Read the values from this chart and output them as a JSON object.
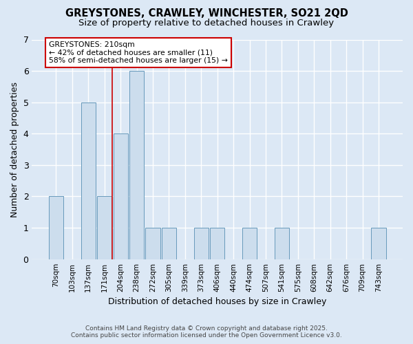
{
  "title1": "GREYSTONES, CRAWLEY, WINCHESTER, SO21 2QD",
  "title2": "Size of property relative to detached houses in Crawley",
  "xlabel": "Distribution of detached houses by size in Crawley",
  "ylabel": "Number of detached properties",
  "categories": [
    "70sqm",
    "103sqm",
    "137sqm",
    "171sqm",
    "204sqm",
    "238sqm",
    "272sqm",
    "305sqm",
    "339sqm",
    "373sqm",
    "406sqm",
    "440sqm",
    "474sqm",
    "507sqm",
    "541sqm",
    "575sqm",
    "608sqm",
    "642sqm",
    "676sqm",
    "709sqm",
    "743sqm"
  ],
  "values": [
    2,
    0,
    5,
    2,
    4,
    6,
    1,
    1,
    0,
    1,
    1,
    0,
    1,
    0,
    1,
    0,
    0,
    0,
    0,
    0,
    1
  ],
  "bar_color": "#ccdded",
  "bar_edge_color": "#6699bb",
  "red_line_x": 3.5,
  "annotation_title": "GREYSTONES: 210sqm",
  "annotation_line1": "← 42% of detached houses are smaller (11)",
  "annotation_line2": "58% of semi-detached houses are larger (15) →",
  "ylim": [
    0,
    7
  ],
  "yticks": [
    0,
    1,
    2,
    3,
    4,
    5,
    6,
    7
  ],
  "bg_color": "#dce8f5",
  "plot_bg_color": "#dce8f5",
  "footer": "Contains HM Land Registry data © Crown copyright and database right 2025.\nContains public sector information licensed under the Open Government Licence v3.0.",
  "title_fontsize": 10.5,
  "subtitle_fontsize": 9.5,
  "annotation_box_color": "#ffffff",
  "annotation_box_edge": "#cc0000",
  "red_line_color": "#cc0000",
  "grid_color": "#c0cfe0"
}
